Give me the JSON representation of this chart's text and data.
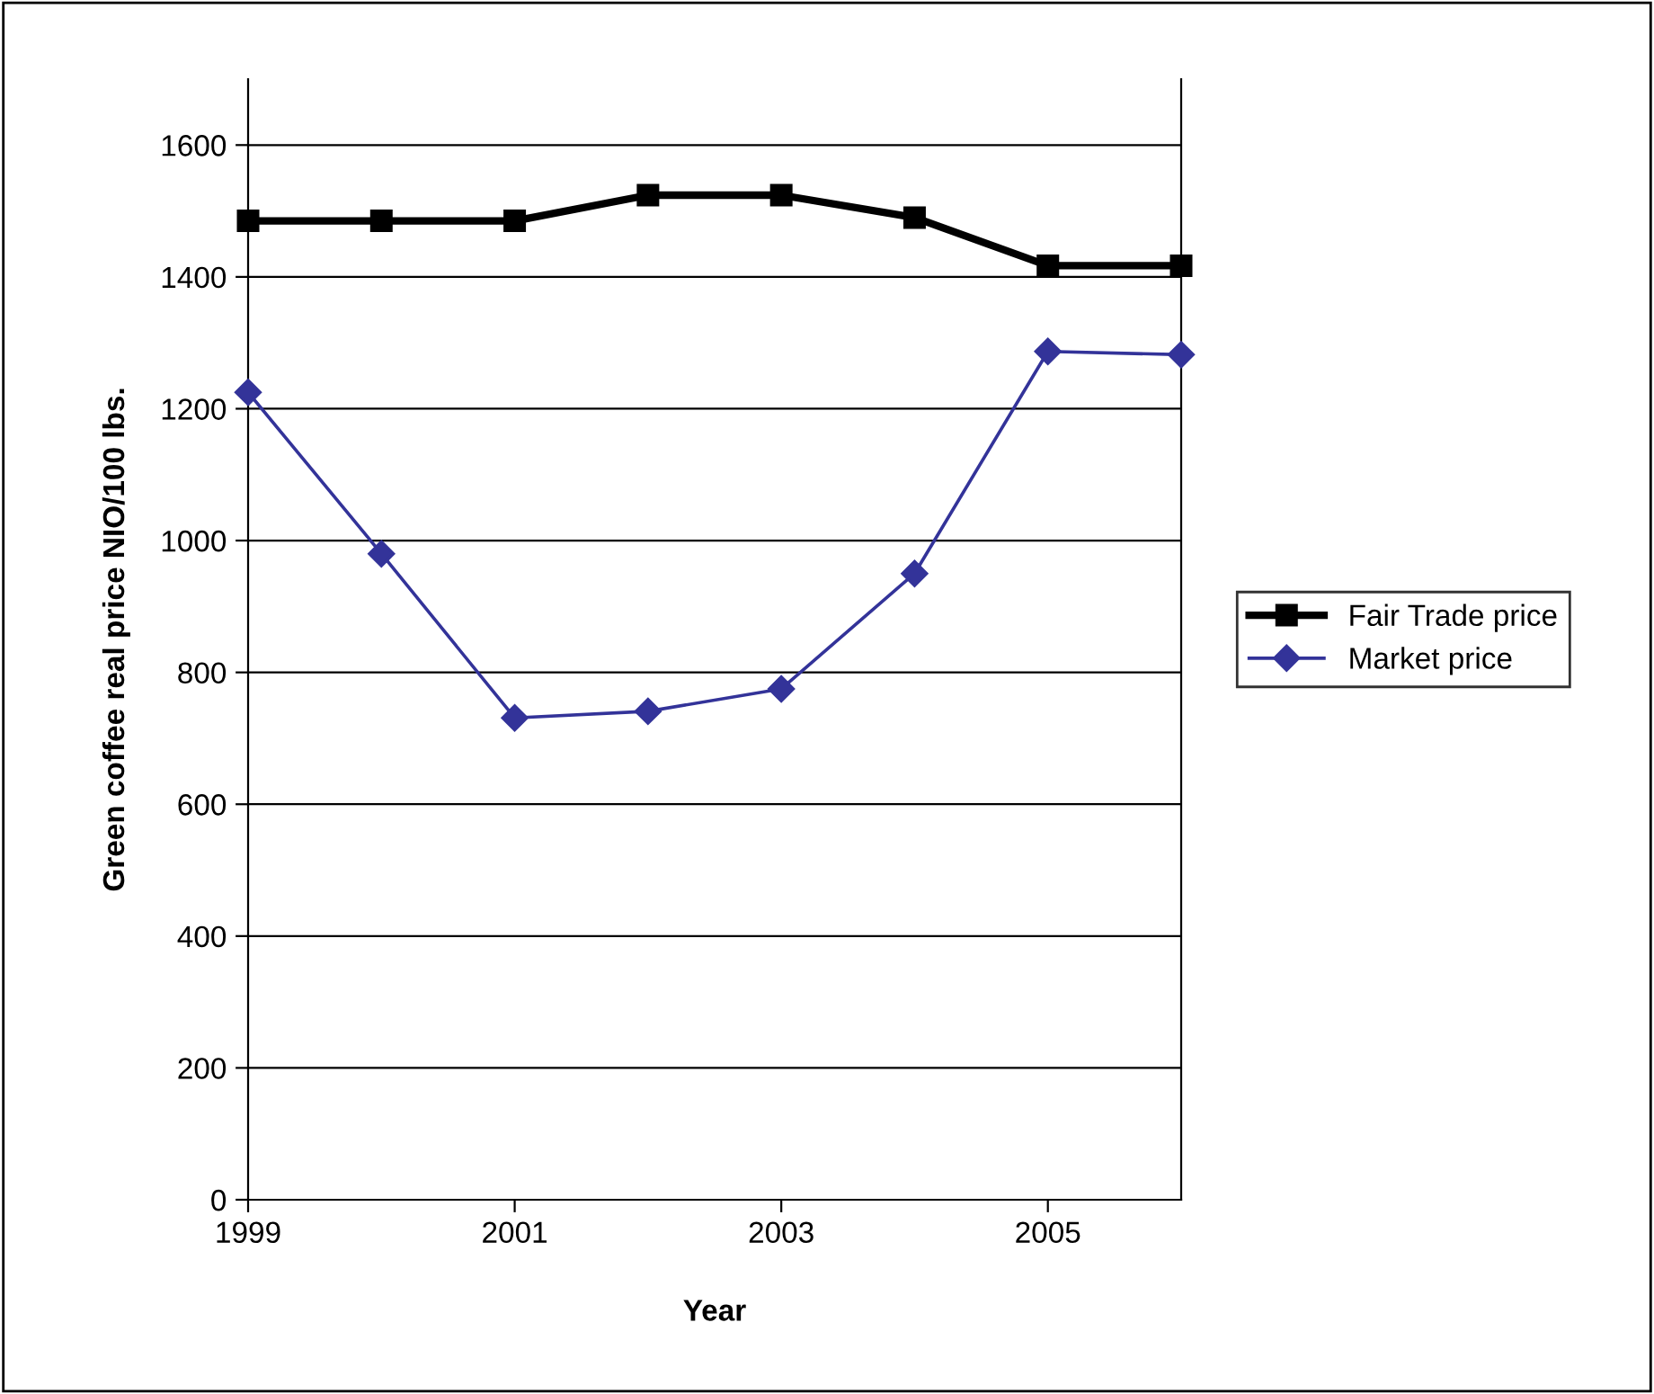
{
  "chart_data": {
    "type": "line",
    "xlabel": "Year",
    "ylabel": "Green coffee real price NIO/100 lbs.",
    "x": [
      1999,
      2000,
      2001,
      2002,
      2003,
      2004,
      2005,
      2006
    ],
    "series": [
      {
        "name": "Fair Trade price",
        "color": "#000000",
        "marker": "square",
        "values": [
          1485,
          1485,
          1485,
          1524,
          1524,
          1490,
          1417,
          1417
        ]
      },
      {
        "name": "Market price",
        "color": "#333399",
        "marker": "diamond",
        "values": [
          1225,
          980,
          731,
          741,
          775,
          950,
          1287,
          1282
        ]
      }
    ],
    "xlim": [
      1999,
      2006
    ],
    "xticks": [
      1999,
      2001,
      2003,
      2005
    ],
    "ylim": [
      0,
      1700
    ],
    "yticks": [
      0,
      200,
      400,
      600,
      800,
      1000,
      1200,
      1400,
      1600
    ],
    "grid": "y",
    "legend": "right"
  }
}
